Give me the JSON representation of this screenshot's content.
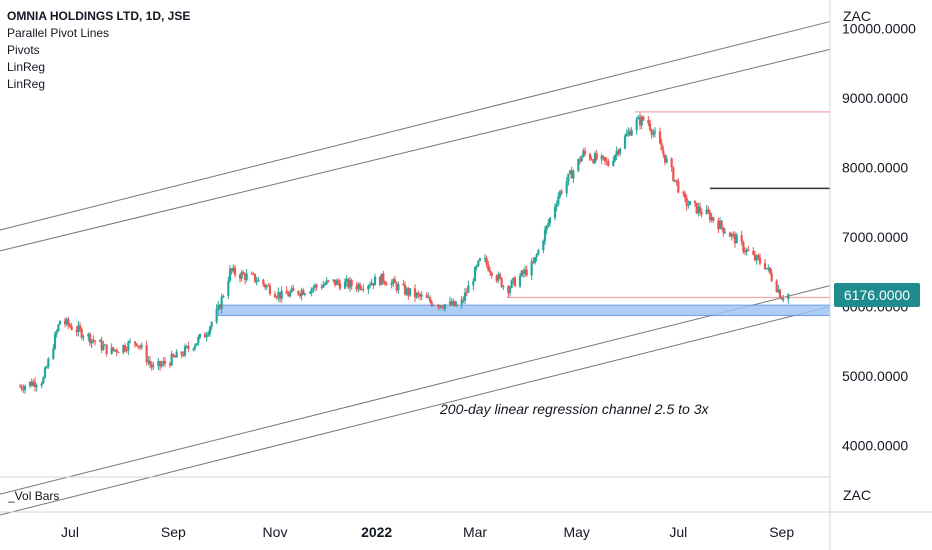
{
  "legend": {
    "title": "OMNIA HOLDINGS LTD, 1D, JSE",
    "indicators": [
      "Parallel Pivot Lines",
      "Pivots",
      "LinReg",
      "LinReg"
    ]
  },
  "currency_top": "ZAC",
  "currency_bottom": "ZAC",
  "volume_label": "_Vol Bars",
  "last_price": "6176.0000",
  "annotation": "200-day linear regression channel 2.5 to 3x",
  "colors": {
    "up": "#26a69a",
    "down": "#ef5350",
    "price_tag": "#1e8c8f",
    "zone": "#9ec5f5",
    "pivot_line": "#f4a6a8",
    "channel": "#777777"
  },
  "chart_data": {
    "type": "candlestick",
    "title": "OMNIA HOLDINGS LTD, 1D, JSE",
    "y_axis": {
      "ticks": [
        "10000.0000",
        "9000.0000",
        "8000.0000",
        "7000.0000",
        "6000.0000",
        "5000.0000",
        "4000.0000"
      ],
      "ylim": [
        3500,
        10200
      ]
    },
    "x_axis": {
      "ticks": [
        "Jul",
        "Sep",
        "Nov",
        "2022",
        "Mar",
        "May",
        "Jul",
        "Sep"
      ],
      "bold_tick": "2022"
    },
    "price_path": [
      [
        "2021-06-01",
        4850
      ],
      [
        "2021-06-15",
        4950
      ],
      [
        "2021-06-25",
        5800
      ],
      [
        "2021-07-10",
        5600
      ],
      [
        "2021-07-25",
        5350
      ],
      [
        "2021-08-10",
        5500
      ],
      [
        "2021-08-20",
        5100
      ],
      [
        "2021-09-05",
        5300
      ],
      [
        "2021-09-20",
        5600
      ],
      [
        "2021-09-28",
        5950
      ],
      [
        "2021-10-05",
        6500
      ],
      [
        "2021-10-20",
        6400
      ],
      [
        "2021-11-05",
        6150
      ],
      [
        "2021-11-20",
        6250
      ],
      [
        "2021-12-05",
        6350
      ],
      [
        "2021-12-20",
        6300
      ],
      [
        "2022-01-05",
        6400
      ],
      [
        "2022-01-20",
        6200
      ],
      [
        "2022-02-05",
        6050
      ],
      [
        "2022-02-20",
        6000
      ],
      [
        "2022-03-05",
        6700
      ],
      [
        "2022-03-20",
        6250
      ],
      [
        "2022-04-05",
        6600
      ],
      [
        "2022-04-20",
        7600
      ],
      [
        "2022-05-05",
        8200
      ],
      [
        "2022-05-20",
        8050
      ],
      [
        "2022-06-05",
        8650
      ],
      [
        "2022-06-12",
        8700
      ],
      [
        "2022-06-20",
        8300
      ],
      [
        "2022-07-05",
        7500
      ],
      [
        "2022-07-20",
        7300
      ],
      [
        "2022-08-05",
        6950
      ],
      [
        "2022-08-15",
        6700
      ],
      [
        "2022-08-22",
        6600
      ],
      [
        "2022-09-01",
        6150
      ],
      [
        "2022-09-05",
        6176
      ]
    ],
    "pivot_lines": [
      {
        "price": 8800,
        "from": "2022-06-05"
      },
      {
        "price": 7700,
        "from": "2022-07-20"
      },
      {
        "price": 6130,
        "from": "2022-03-20"
      }
    ],
    "support_zone": {
      "low": 5870,
      "high": 6020,
      "from": "2021-09-28"
    },
    "regression_channels": [
      {
        "upper_start": 7100,
        "upper_end": 10100,
        "lower_start": 3300,
        "lower_end": 6300
      },
      {
        "upper_start": 6800,
        "upper_end": 9700,
        "lower_start": 3000,
        "lower_end": 6000
      }
    ],
    "last_price": 6176
  }
}
